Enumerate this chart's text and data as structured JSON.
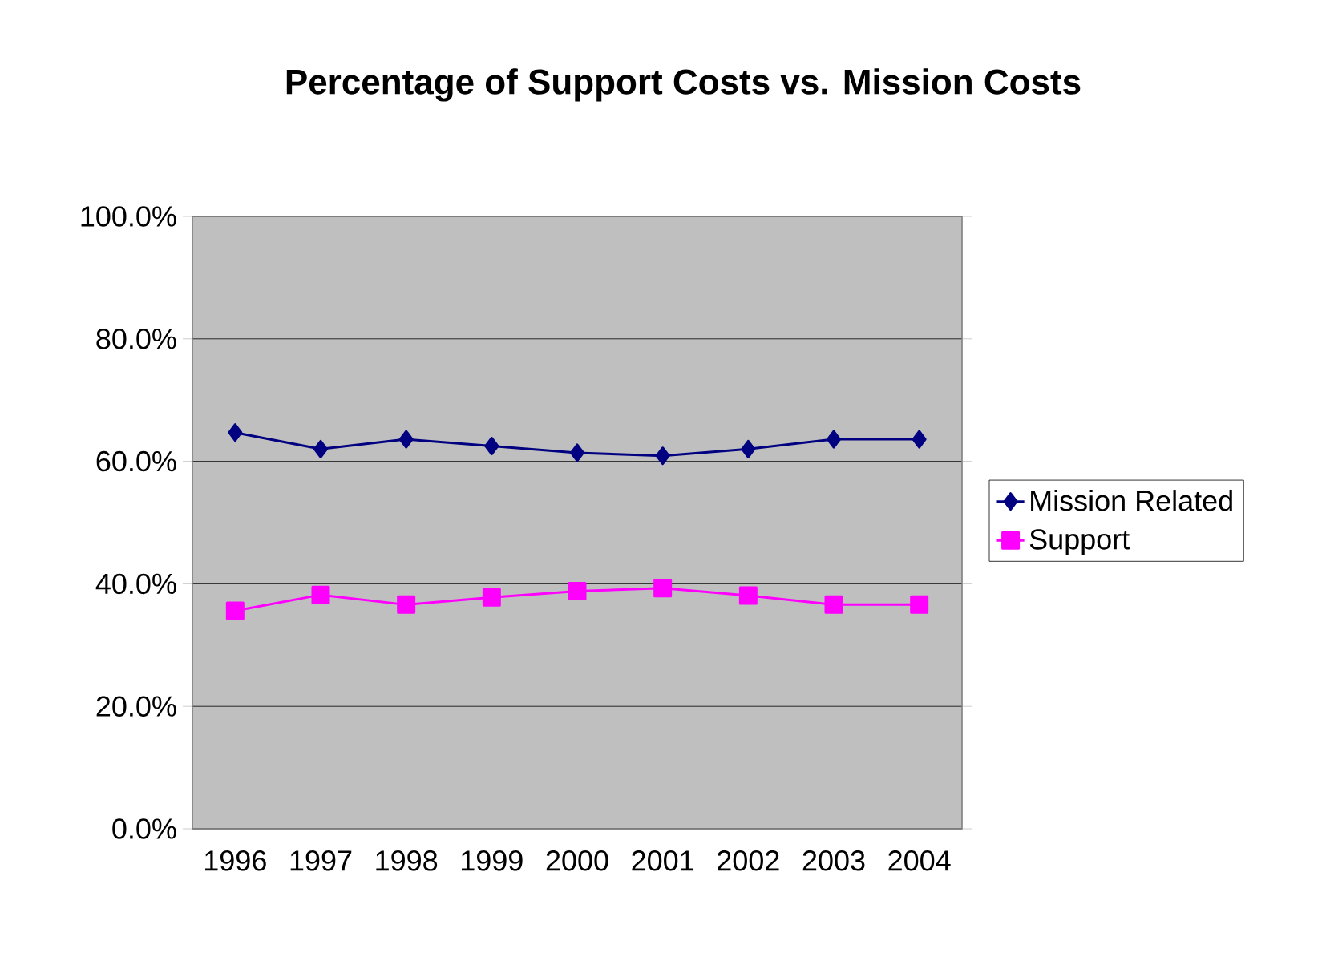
{
  "chart_data": {
    "type": "line",
    "title": "Percentage of Support Costs vs. Mission Costs",
    "categories": [
      "1996",
      "1997",
      "1998",
      "1999",
      "2000",
      "2001",
      "2002",
      "2003",
      "2004"
    ],
    "series": [
      {
        "name": "Mission Related",
        "color": "#000080",
        "marker": "diamond",
        "values": [
          64.7,
          62.0,
          63.6,
          62.5,
          61.4,
          60.9,
          62.0,
          63.6,
          63.6
        ]
      },
      {
        "name": "Support",
        "color": "#ff00ff",
        "marker": "square",
        "values": [
          35.6,
          38.2,
          36.6,
          37.8,
          38.8,
          39.3,
          38.1,
          36.6,
          36.6
        ]
      }
    ],
    "ylim": [
      0,
      100
    ],
    "yticks": [
      {
        "value": 0,
        "label": "0.0%"
      },
      {
        "value": 20,
        "label": "20.0%"
      },
      {
        "value": 40,
        "label": "40.0%"
      },
      {
        "value": 60,
        "label": "60.0%"
      },
      {
        "value": 80,
        "label": "80.0%"
      },
      {
        "value": 100,
        "label": "100.0%"
      }
    ],
    "grid": "y",
    "legend": "right"
  }
}
